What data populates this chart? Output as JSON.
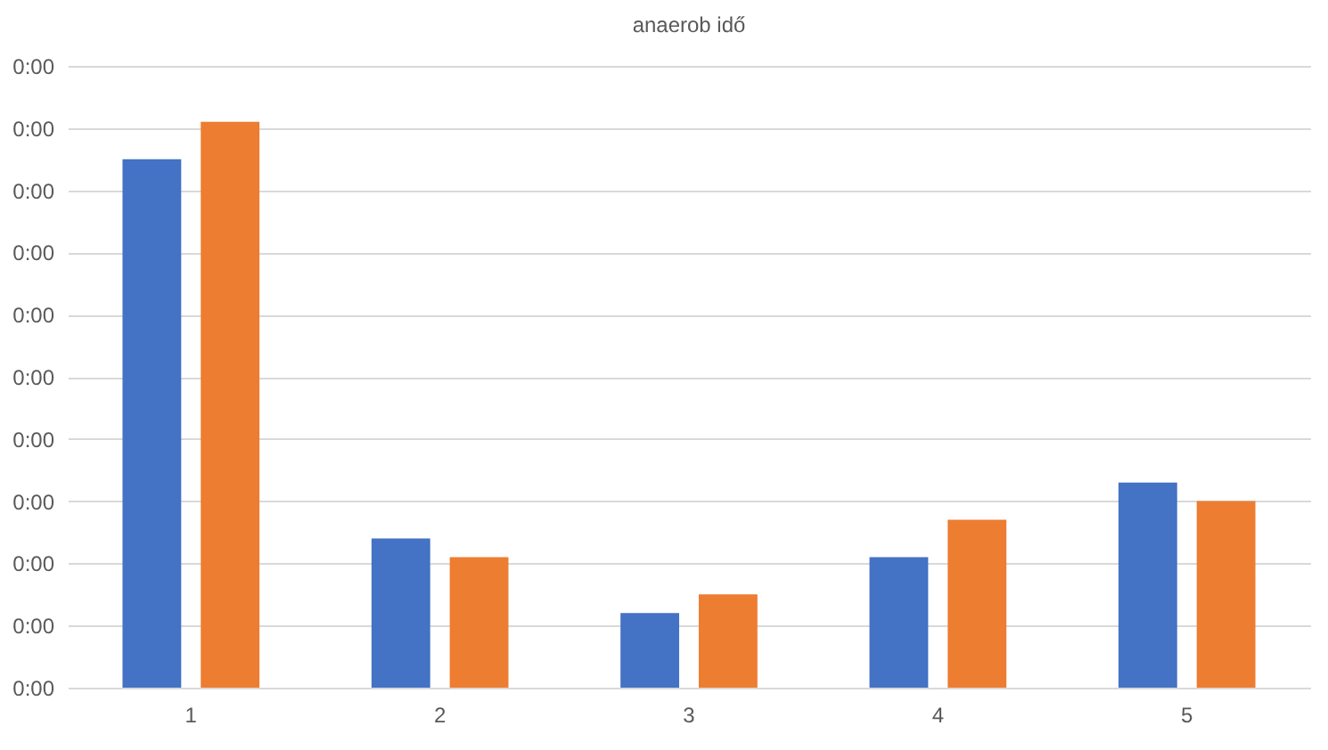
{
  "chart_data": {
    "type": "bar",
    "title": "anaerob idő",
    "categories": [
      "1",
      "2",
      "3",
      "4",
      "5"
    ],
    "series": [
      {
        "color": "#4472c4",
        "values": [
          8.5,
          2.4,
          1.2,
          2.1,
          3.3
        ]
      },
      {
        "color": "#ed7d31",
        "values": [
          9.1,
          2.1,
          1.5,
          2.7,
          3.0
        ]
      }
    ],
    "ylim": [
      0,
      10
    ],
    "yticks": [
      {
        "value": 0,
        "label": "0:00"
      },
      {
        "value": 1,
        "label": "0:00"
      },
      {
        "value": 2,
        "label": "0:00"
      },
      {
        "value": 3,
        "label": "0:00"
      },
      {
        "value": 4,
        "label": "0:00"
      },
      {
        "value": 5,
        "label": "0:00"
      },
      {
        "value": 6,
        "label": "0:00"
      },
      {
        "value": 7,
        "label": "0:00"
      },
      {
        "value": 8,
        "label": "0:00"
      },
      {
        "value": 9,
        "label": "0:00"
      },
      {
        "value": 10,
        "label": "0:00"
      }
    ],
    "grid": "y"
  }
}
